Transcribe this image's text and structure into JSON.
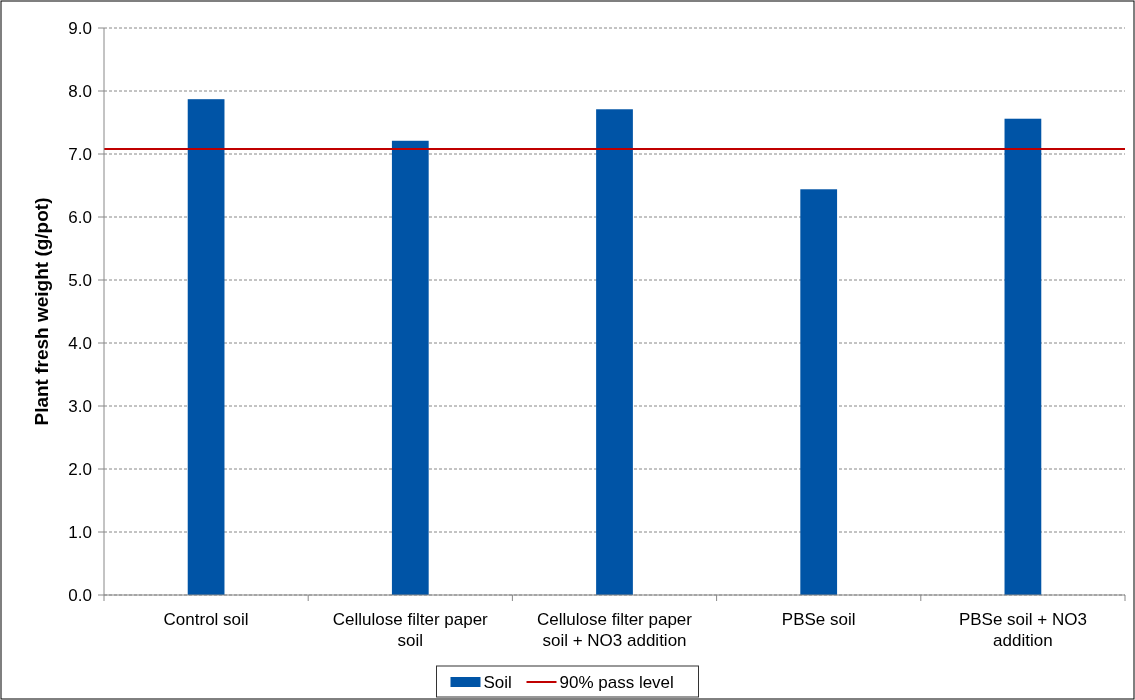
{
  "chart_data": {
    "type": "bar",
    "ylabel": "Plant fresh weight (g/pot)",
    "categories": [
      "Control soil",
      "Cellulose filter paper soil",
      "Cellulose filter paper soil + NO3 addition",
      "PBSe soil",
      "PBSe soil + NO3 addition"
    ],
    "series": [
      {
        "name": "Soil",
        "color": "#0054a6",
        "values": [
          7.87,
          7.21,
          7.71,
          6.44,
          7.56
        ]
      }
    ],
    "ylim": [
      0,
      9
    ],
    "yticks": [
      {
        "value": 0,
        "label": "0.0"
      },
      {
        "value": 1,
        "label": "1.0"
      },
      {
        "value": 2,
        "label": "2.0"
      },
      {
        "value": 3,
        "label": "3.0"
      },
      {
        "value": 4,
        "label": "4.0"
      },
      {
        "value": 5,
        "label": "5.0"
      },
      {
        "value": 6,
        "label": "6.0"
      },
      {
        "value": 7,
        "label": "7.0"
      },
      {
        "value": 8,
        "label": "8.0"
      },
      {
        "value": 9,
        "label": "9.0"
      }
    ],
    "ref_lines": [
      {
        "axis": "y",
        "value": 7.08,
        "label": "90% pass level",
        "color": "#c00000"
      }
    ],
    "grid": "y",
    "legend": "bottom"
  }
}
